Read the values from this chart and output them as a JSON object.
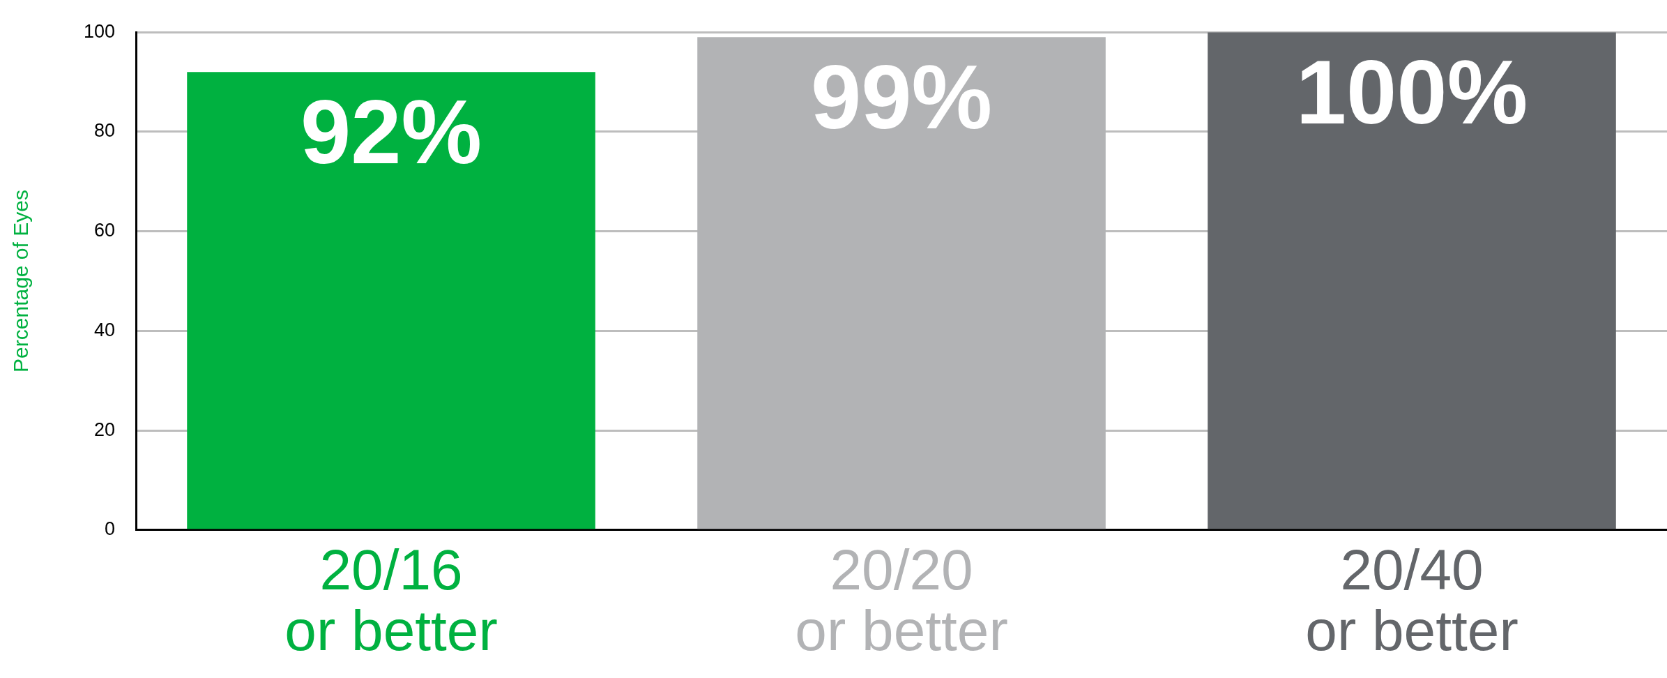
{
  "chart_data": {
    "type": "bar",
    "ylabel": "Percentage of Eyes",
    "categories": [
      "20/16\nor better",
      "20/20\nor better",
      "20/40\nor better"
    ],
    "values": [
      92,
      99,
      100
    ],
    "colors": [
      "#00b140",
      "#b2b3b5",
      "#63666a"
    ],
    "value_labels": [
      "92%",
      "99%",
      "100%"
    ],
    "ylim": [
      0,
      100
    ],
    "yticks": [
      0,
      20,
      40,
      60,
      80,
      100
    ],
    "grid": "y",
    "legend": false
  }
}
